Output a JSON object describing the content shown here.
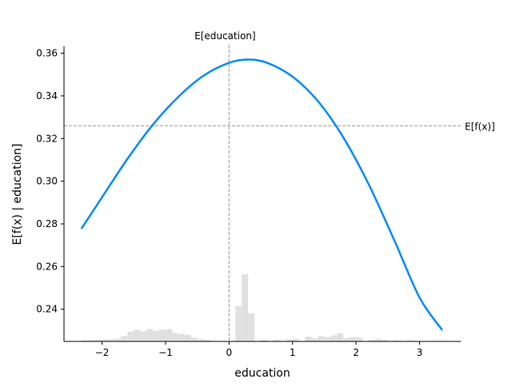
{
  "chart_data": {
    "type": "line",
    "xlabel": "education",
    "ylabel": "E[f(x) | education]",
    "xlim": [
      -2.6,
      3.65
    ],
    "ylim": [
      0.2249,
      0.3632
    ],
    "x_ticks": [
      -2,
      -1,
      0,
      1,
      2,
      3
    ],
    "x_tick_labels": [
      "−2",
      "−1",
      "0",
      "1",
      "2",
      "3"
    ],
    "y_ticks": [
      0.24,
      0.26,
      0.28,
      0.3,
      0.32,
      0.34,
      0.36
    ],
    "y_tick_labels": [
      "0.24",
      "0.26",
      "0.28",
      "0.30",
      "0.32",
      "0.34",
      "0.36"
    ],
    "grid": false,
    "series": [
      {
        "color": "#008bfb",
        "x": [
          -2.32,
          -2.0,
          -1.6,
          -1.2,
          -0.8,
          -0.4,
          0.0,
          0.3,
          0.6,
          1.0,
          1.4,
          1.8,
          2.2,
          2.6,
          3.0,
          3.35
        ],
        "y": [
          0.278,
          0.2925,
          0.3105,
          0.3265,
          0.3395,
          0.3495,
          0.3555,
          0.357,
          0.3555,
          0.349,
          0.3375,
          0.3205,
          0.2985,
          0.2725,
          0.2455,
          0.2305
        ]
      }
    ],
    "reference_lines": [
      {
        "orientation": "horizontal",
        "value": 0.326,
        "label": "E[f(x)]",
        "color": "#999999"
      },
      {
        "orientation": "vertical",
        "value": 0.0,
        "label": "E[education]",
        "color": "#999999"
      }
    ],
    "histogram": {
      "color": "#e0e0e0",
      "bin_width": 0.1,
      "bins": [
        {
          "x": -2.3,
          "height": 0.0005
        },
        {
          "x": -2.2,
          "height": 0.0007
        },
        {
          "x": -2.1,
          "height": 0.0008
        },
        {
          "x": -2.0,
          "height": 0.001
        },
        {
          "x": -1.9,
          "height": 0.0011
        },
        {
          "x": -1.8,
          "height": 0.0013
        },
        {
          "x": -1.7,
          "height": 0.0025
        },
        {
          "x": -1.6,
          "height": 0.0045
        },
        {
          "x": -1.5,
          "height": 0.0055
        },
        {
          "x": -1.4,
          "height": 0.0048
        },
        {
          "x": -1.3,
          "height": 0.0058
        },
        {
          "x": -1.2,
          "height": 0.005
        },
        {
          "x": -1.1,
          "height": 0.0055
        },
        {
          "x": -1.0,
          "height": 0.0058
        },
        {
          "x": -0.9,
          "height": 0.004
        },
        {
          "x": -0.8,
          "height": 0.0035
        },
        {
          "x": -0.7,
          "height": 0.003
        },
        {
          "x": -0.6,
          "height": 0.0018
        },
        {
          "x": -0.5,
          "height": 0.0012
        },
        {
          "x": -0.4,
          "height": 0.0008
        },
        {
          "x": 0.1,
          "height": 0.0165
        },
        {
          "x": 0.2,
          "height": 0.0315
        },
        {
          "x": 0.3,
          "height": 0.0132
        },
        {
          "x": 0.5,
          "height": 0.0008
        },
        {
          "x": 0.7,
          "height": 0.0008
        },
        {
          "x": 0.9,
          "height": 0.001
        },
        {
          "x": 1.0,
          "height": 0.0012
        },
        {
          "x": 1.2,
          "height": 0.0022
        },
        {
          "x": 1.3,
          "height": 0.0015
        },
        {
          "x": 1.4,
          "height": 0.0025
        },
        {
          "x": 1.5,
          "height": 0.002
        },
        {
          "x": 1.6,
          "height": 0.0028
        },
        {
          "x": 1.7,
          "height": 0.0038
        },
        {
          "x": 1.8,
          "height": 0.0015
        },
        {
          "x": 1.9,
          "height": 0.002
        },
        {
          "x": 2.0,
          "height": 0.0018
        },
        {
          "x": 2.2,
          "height": 0.0008
        },
        {
          "x": 2.3,
          "height": 0.0012
        },
        {
          "x": 2.4,
          "height": 0.0008
        },
        {
          "x": 2.6,
          "height": 0.0005
        },
        {
          "x": 2.8,
          "height": 0.0004
        }
      ]
    }
  }
}
